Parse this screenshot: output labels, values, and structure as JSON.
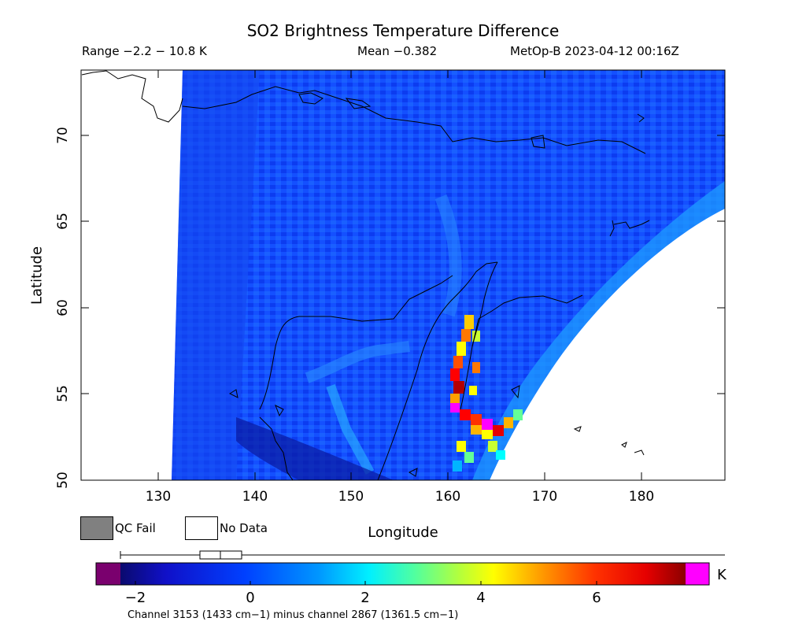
{
  "header": {
    "title": "SO2 Brightness Temperature Difference",
    "range": "Range −2.2 − 10.8 K",
    "mean": "Mean −0.382",
    "satellite": "MetOp-B 2023-04-12 00:16Z"
  },
  "axes": {
    "xlabel": "Longitude",
    "ylabel": "Latitude",
    "xticks": [
      "130",
      "140",
      "150",
      "160",
      "170",
      "180"
    ],
    "yticks": [
      "50",
      "55",
      "60",
      "65",
      "70"
    ]
  },
  "legend": {
    "qc_fail": "QC Fail",
    "no_data": "No Data",
    "qc_fail_color": "#808080",
    "no_data_color": "#ffffff"
  },
  "colorbar": {
    "unit": "K",
    "ticks": [
      "−2",
      "0",
      "2",
      "4",
      "6"
    ],
    "colors": [
      "#7a006e",
      "#0a0a6e",
      "#1414d2",
      "#0050ff",
      "#00b4ff",
      "#00ffff",
      "#64ff96",
      "#c8ff32",
      "#ffff00",
      "#ffb400",
      "#ff6400",
      "#ff1e00",
      "#b40000",
      "#ff00ff"
    ]
  },
  "caption": "Channel 3153 (1433 cm−1) minus channel 2867 (1361.5 cm−1)"
}
